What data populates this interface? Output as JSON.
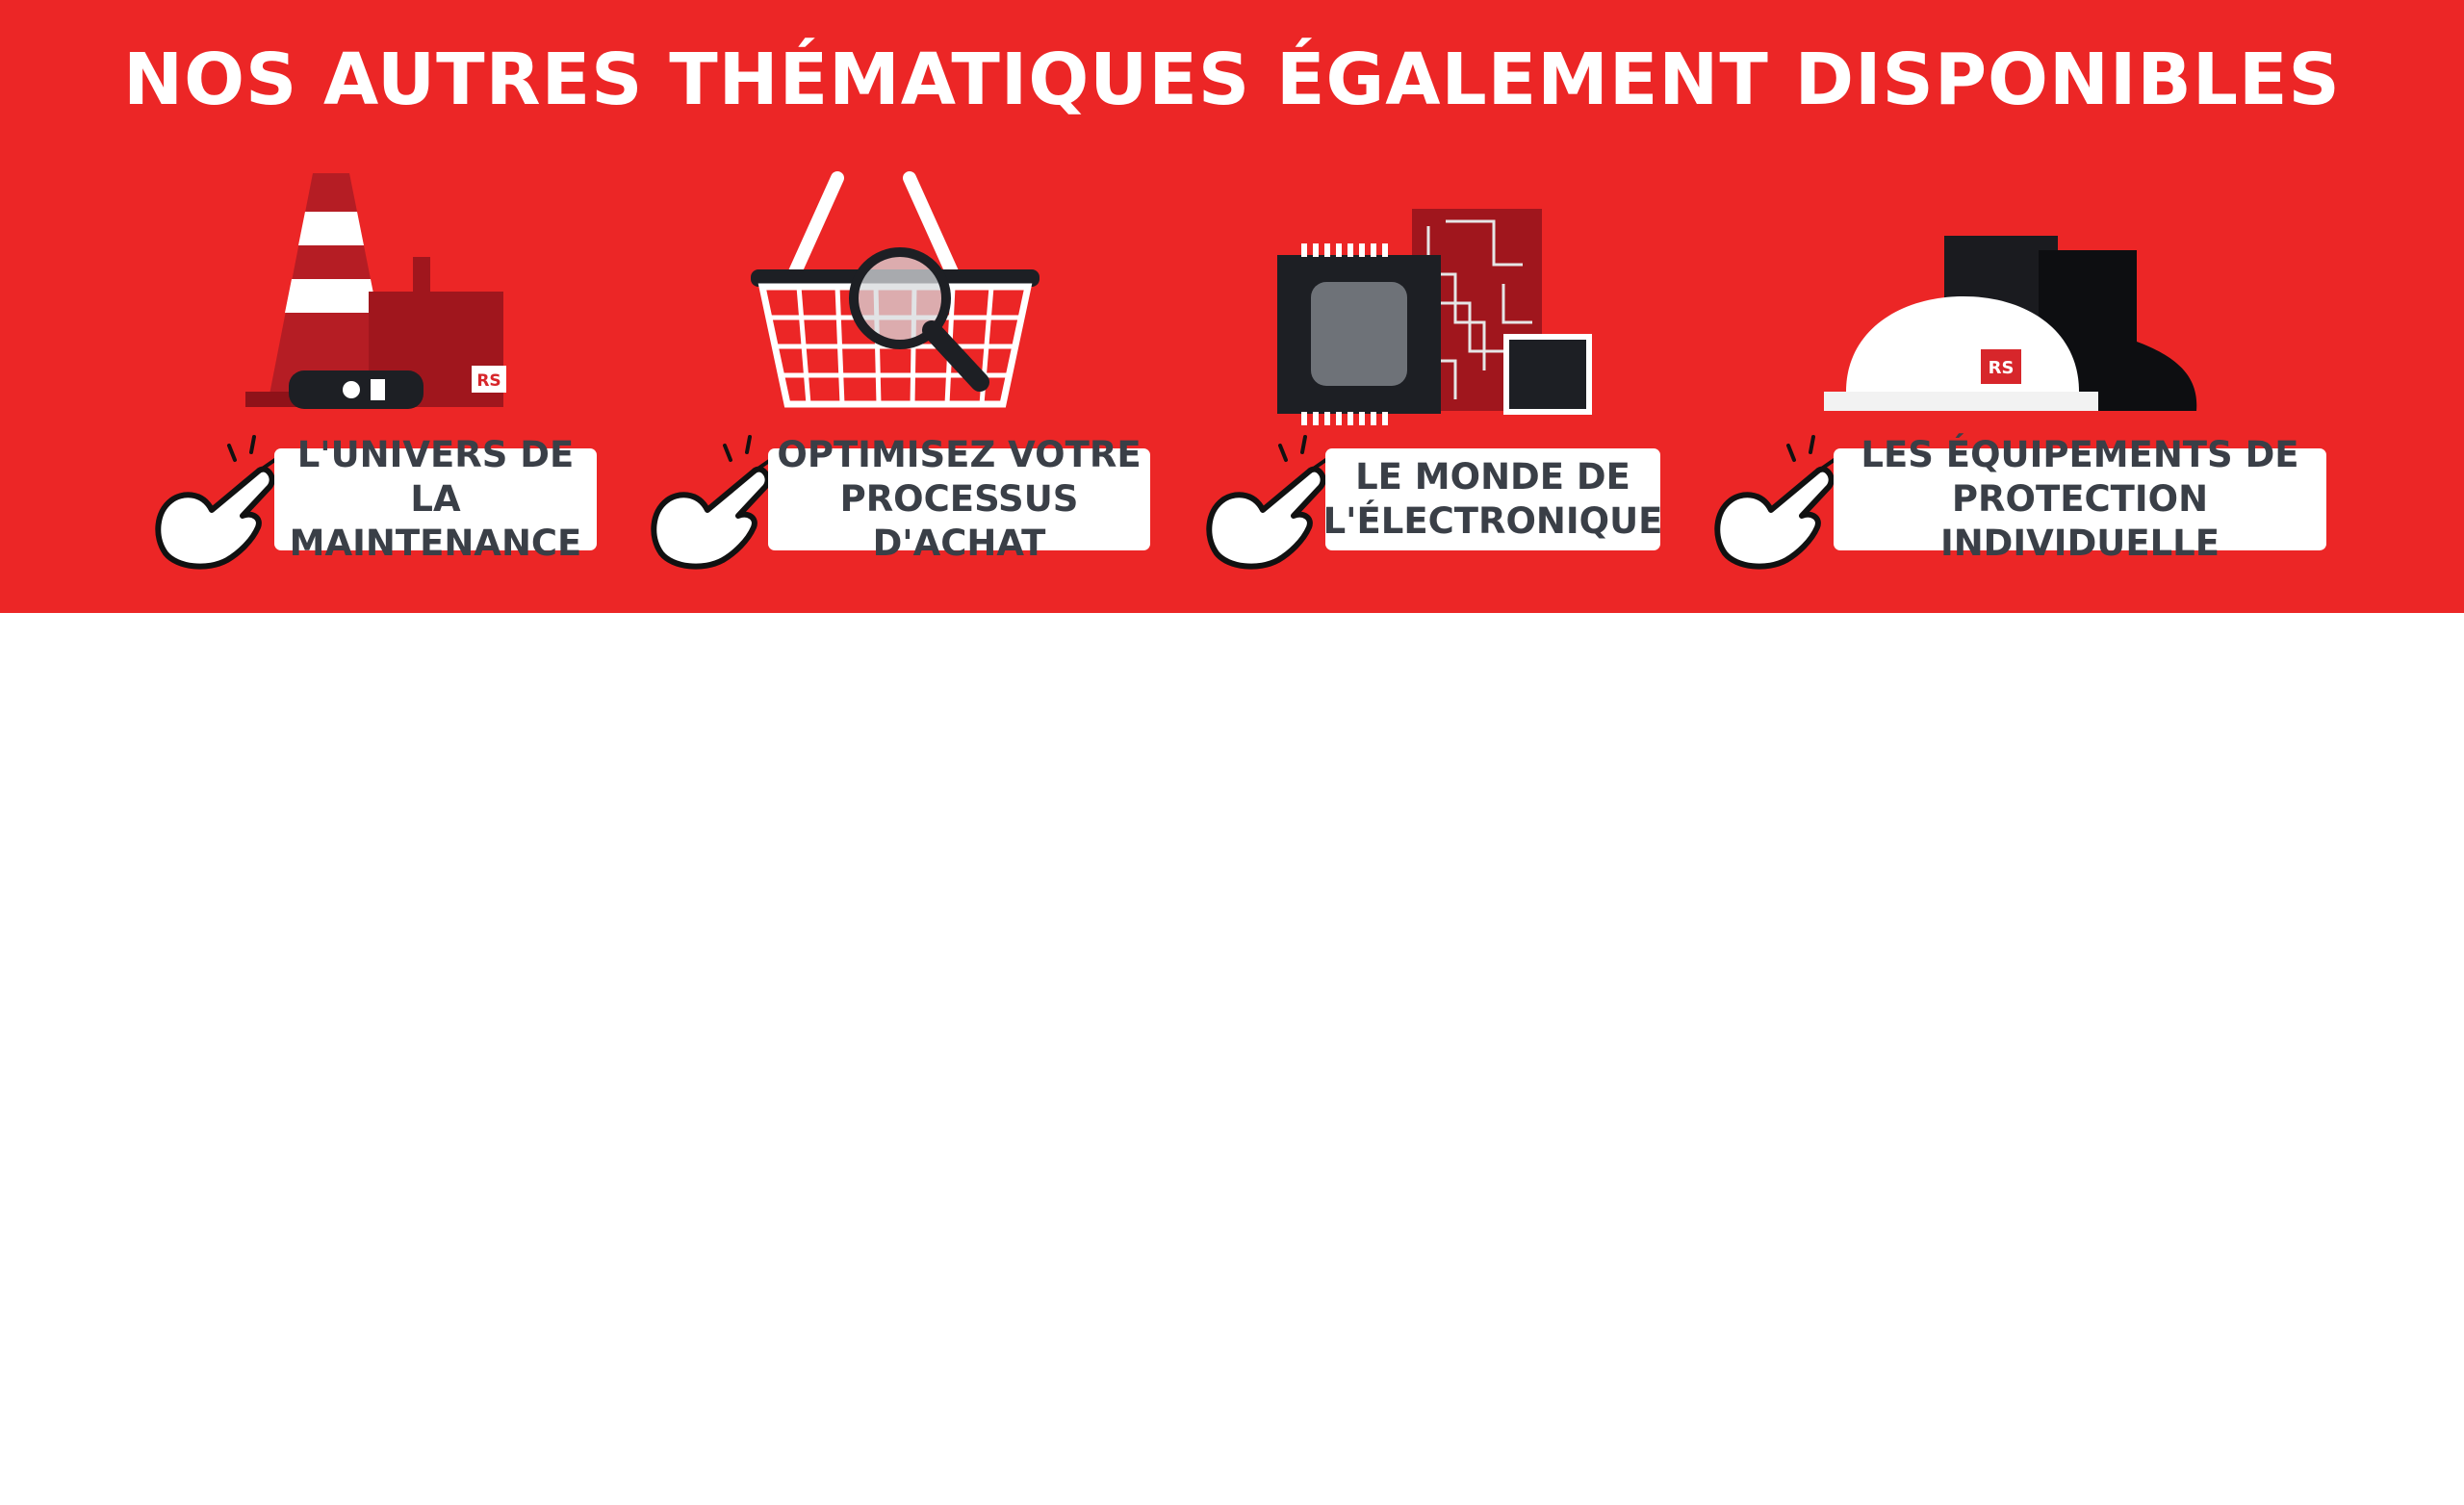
{
  "banner": {
    "title": "NOS AUTRES THÉMATIQUES ÉGALEMENT DISPONIBLES",
    "background_color": "#ec2626",
    "label_text_color": "#3a3f47",
    "items": [
      {
        "label": "L'UNIVERS DE LA\nMAINTENANCE",
        "illustration": "traffic-cone-and-tools-icon"
      },
      {
        "label": "OPTIMISEZ VOTRE\nPROCESSUS D'ACHAT",
        "illustration": "shopping-basket-magnifier-icon"
      },
      {
        "label": "LE MONDE DE\nL'ÉLECTRONIQUE",
        "illustration": "circuit-board-chips-icon"
      },
      {
        "label": "LES ÉQUIPEMENTS DE\nPROTECTION INDIVIDUELLE",
        "illustration": "hard-hat-and-boots-icon"
      }
    ],
    "logo_text": "RS"
  }
}
